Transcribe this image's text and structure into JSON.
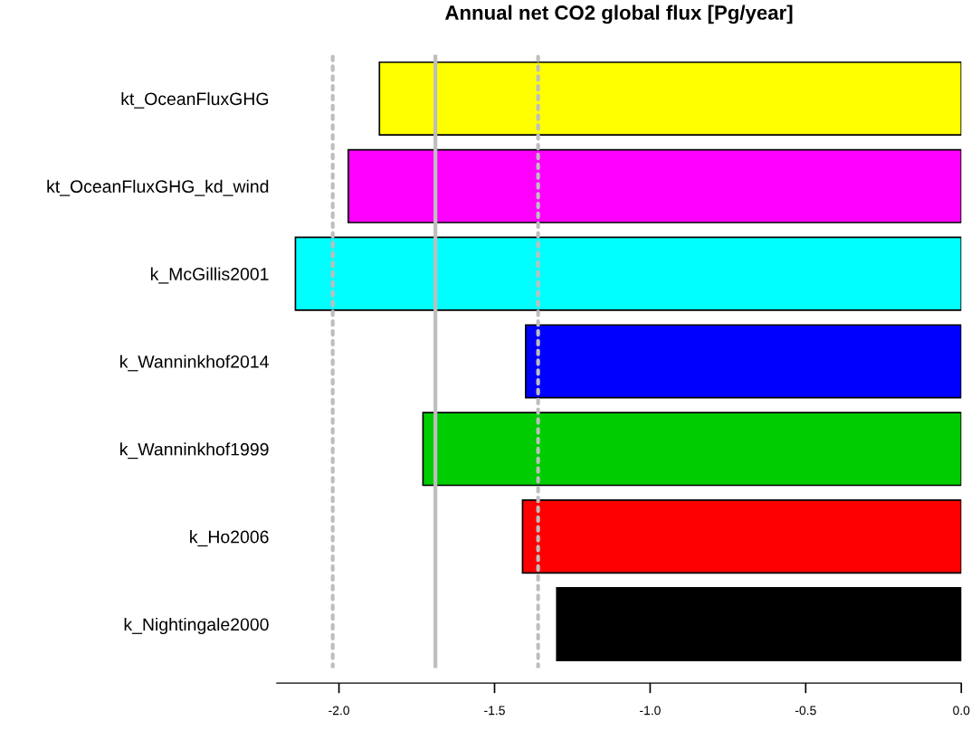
{
  "chart_data": {
    "type": "bar",
    "orientation": "horizontal",
    "title": "Annual net CO2 global flux [Pg/year]",
    "categories": [
      "kt_OceanFluxGHG",
      "kt_OceanFluxGHG_kd_wind",
      "k_McGillis2001",
      "k_Wanninkhof2014",
      "k_Wanninkhof1999",
      "k_Ho2006",
      "k_Nightingale2000"
    ],
    "values": [
      -1.87,
      -1.97,
      -2.14,
      -1.4,
      -1.73,
      -1.41,
      -1.3
    ],
    "colors": [
      "#ffff00",
      "#ff00ff",
      "#00ffff",
      "#0000ff",
      "#00cd00",
      "#ff0000",
      "#000000"
    ],
    "xlim": [
      -2.2,
      0.0
    ],
    "xticks": [
      {
        "value": -2.0,
        "label": "-2.0"
      },
      {
        "value": -1.5,
        "label": "-1.5"
      },
      {
        "value": -1.0,
        "label": "-1.0"
      },
      {
        "value": -0.5,
        "label": "-0.5"
      },
      {
        "value": 0.0,
        "label": "0.0"
      }
    ],
    "ref_lines": [
      {
        "axis": "x",
        "value": -1.69,
        "color": "#bebebe",
        "line_style": "solid"
      },
      {
        "axis": "x",
        "value": -2.02,
        "color": "#bebebe",
        "line_style": "dotted"
      },
      {
        "axis": "x",
        "value": -1.36,
        "color": "#bebebe",
        "line_style": "dotted"
      }
    ],
    "grid": false,
    "legend": false
  }
}
